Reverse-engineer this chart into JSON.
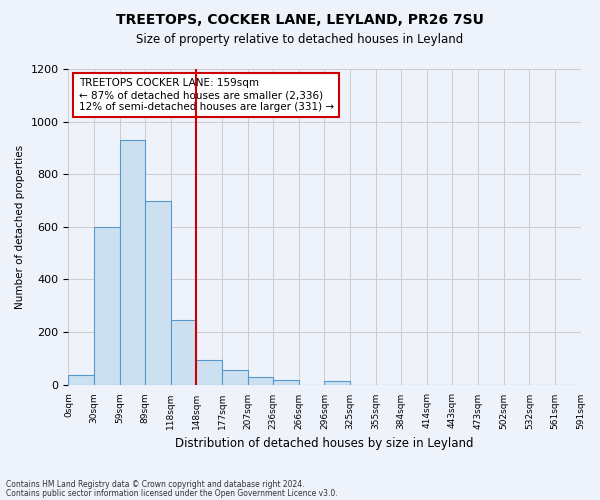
{
  "title": "TREETOPS, COCKER LANE, LEYLAND, PR26 7SU",
  "subtitle": "Size of property relative to detached houses in Leyland",
  "xlabel": "Distribution of detached houses by size in Leyland",
  "ylabel": "Number of detached properties",
  "bar_color": "#cce0f0",
  "bar_edge_color": "#5599cc",
  "bin_labels": [
    "0sqm",
    "30sqm",
    "59sqm",
    "89sqm",
    "118sqm",
    "148sqm",
    "177sqm",
    "207sqm",
    "236sqm",
    "266sqm",
    "296sqm",
    "325sqm",
    "355sqm",
    "384sqm",
    "414sqm",
    "443sqm",
    "473sqm",
    "502sqm",
    "532sqm",
    "561sqm",
    "591sqm"
  ],
  "bar_values": [
    35,
    600,
    930,
    700,
    245,
    95,
    55,
    30,
    18,
    0,
    12,
    0,
    0,
    0,
    0,
    0,
    0,
    0,
    0,
    0
  ],
  "vline_x": 5,
  "vline_color": "#cc0000",
  "ylim": [
    0,
    1200
  ],
  "yticks": [
    0,
    200,
    400,
    600,
    800,
    1000,
    1200
  ],
  "annotation_title": "TREETOPS COCKER LANE: 159sqm",
  "annotation_line1": "← 87% of detached houses are smaller (2,336)",
  "annotation_line2": "12% of semi-detached houses are larger (331) →",
  "annotation_box_color": "#ffffff",
  "annotation_box_edge_color": "#cc0000",
  "grid_color": "#cccccc",
  "background_color": "#eef2fa",
  "footnote1": "Contains HM Land Registry data © Crown copyright and database right 2024.",
  "footnote2": "Contains public sector information licensed under the Open Government Licence v3.0."
}
